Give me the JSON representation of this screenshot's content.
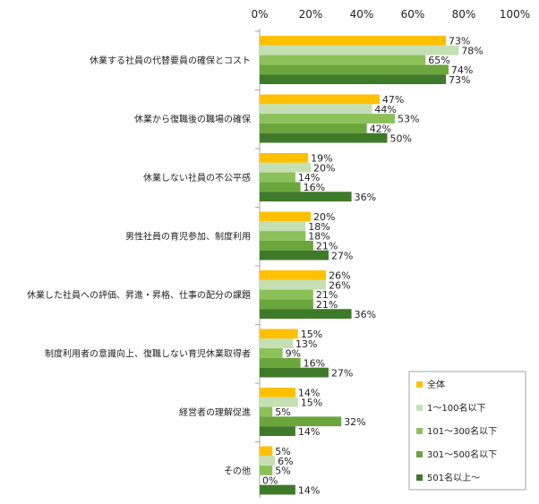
{
  "chart_data": {
    "type": "bar",
    "orientation": "horizontal",
    "xlim": [
      0,
      100
    ],
    "x_ticks": [
      "0%",
      "20%",
      "40%",
      "60%",
      "80%",
      "100%"
    ],
    "grid": false,
    "legend_position": "bottom-right",
    "categories": [
      "休業する社員の代替要員の確保とコスト",
      "休業から復職後の職場の確保",
      "休業しない社員の不公平感",
      "男性社員の育児参加、制度利用",
      "休業した社員への評価、昇進・昇格、仕事の配分の課題",
      "制度利用者の意識向上、復職しない育児休業取得者",
      "経営者の理解促進",
      "その他"
    ],
    "series": [
      {
        "name": "全体",
        "color": "#FFC000",
        "values": [
          73,
          47,
          19,
          20,
          26,
          15,
          14,
          5
        ]
      },
      {
        "name": "1～100名以下",
        "color": "#C5E0B4",
        "values": [
          78,
          44,
          20,
          18,
          26,
          13,
          15,
          6
        ]
      },
      {
        "name": "101～300名以下",
        "color": "#8CC15A",
        "values": [
          65,
          53,
          14,
          18,
          21,
          9,
          5,
          5
        ]
      },
      {
        "name": "301～500名以下",
        "color": "#6BA63D",
        "values": [
          74,
          42,
          16,
          21,
          21,
          16,
          32,
          0
        ]
      },
      {
        "name": "501名以上～",
        "color": "#3F7A2A",
        "values": [
          73,
          50,
          36,
          27,
          36,
          27,
          14,
          14
        ]
      }
    ]
  }
}
